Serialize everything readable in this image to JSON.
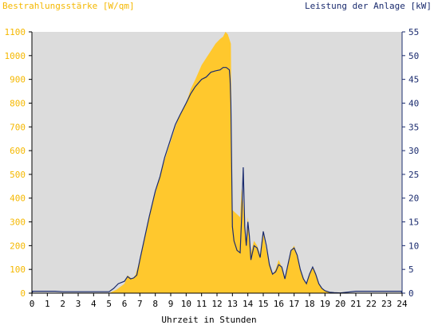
{
  "chart_data": {
    "type": "area",
    "left_axis_title": "Bestrahlungsstärke [W/qm]",
    "right_axis_title": "Leistung der Anlage [kW]",
    "xlabel": "Uhrzeit in Stunden",
    "xlim": [
      0,
      24
    ],
    "ylim_left": [
      0,
      1100
    ],
    "ylim_right": [
      0,
      55
    ],
    "x_ticks": [
      "0",
      "1",
      "2",
      "3",
      "4",
      "5",
      "6",
      "7",
      "8",
      "9",
      "10",
      "11",
      "12",
      "13",
      "14",
      "15",
      "16",
      "17",
      "18",
      "19",
      "20",
      "21",
      "22",
      "23",
      "24"
    ],
    "y_left_ticks": [
      "0",
      "100",
      "200",
      "300",
      "400",
      "500",
      "600",
      "700",
      "800",
      "900",
      "1000",
      "1100"
    ],
    "y_right_ticks": [
      "0",
      "5",
      "10",
      "15",
      "20",
      "25",
      "30",
      "35",
      "40",
      "45",
      "50",
      "55"
    ],
    "grid": false,
    "colors": {
      "plot_background": "#dcdcdc",
      "irradiance_fill": "#ffc82d",
      "power_line": "#1a2b6e",
      "left_axis_text": "#f5b800",
      "right_axis_text": "#1a2b6e"
    },
    "series": [
      {
        "axis": "left",
        "style": "area",
        "x": [
          0,
          5.0,
          5.5,
          6.0,
          6.2,
          6.5,
          6.7,
          7.0,
          7.3,
          7.6,
          8.0,
          8.3,
          8.6,
          9.0,
          9.3,
          9.6,
          10.0,
          10.3,
          10.6,
          11.0,
          11.3,
          11.6,
          11.9,
          12.2,
          12.4,
          12.55,
          12.7,
          12.9,
          12.95,
          13.0,
          13.5,
          13.6,
          13.7,
          13.8,
          13.9,
          14.0,
          14.1,
          14.2,
          14.4,
          14.6,
          14.8,
          15.0,
          15.2,
          15.4,
          15.6,
          15.8,
          16.0,
          16.2,
          16.4,
          16.6,
          16.8,
          17.0,
          17.2,
          17.4,
          17.6,
          17.8,
          18.0,
          18.2,
          18.4,
          18.6,
          18.8,
          19.0,
          19.3,
          19.6,
          20.0,
          24
        ],
        "y": [
          0,
          0,
          15,
          40,
          75,
          60,
          75,
          140,
          230,
          320,
          420,
          490,
          560,
          640,
          700,
          750,
          800,
          860,
          900,
          960,
          990,
          1020,
          1050,
          1070,
          1080,
          1100,
          1090,
          1050,
          600,
          350,
          320,
          440,
          380,
          280,
          210,
          320,
          250,
          170,
          220,
          200,
          160,
          250,
          180,
          120,
          80,
          100,
          140,
          110,
          60,
          120,
          180,
          200,
          160,
          100,
          60,
          40,
          80,
          110,
          80,
          40,
          20,
          10,
          5,
          2,
          0,
          0
        ]
      },
      {
        "axis": "right",
        "style": "line",
        "x": [
          0,
          0.05,
          0.5,
          1.0,
          1.5,
          2.0,
          2.5,
          3.0,
          3.5,
          4.0,
          4.5,
          5.0,
          5.3,
          5.6,
          6.0,
          6.2,
          6.4,
          6.6,
          6.8,
          7.0,
          7.3,
          7.6,
          8.0,
          8.3,
          8.6,
          9.0,
          9.3,
          9.6,
          10.0,
          10.3,
          10.6,
          11.0,
          11.3,
          11.6,
          11.9,
          12.2,
          12.4,
          12.6,
          12.8,
          12.85,
          12.9,
          13.0,
          13.1,
          13.3,
          13.5,
          13.6,
          13.7,
          13.8,
          13.9,
          14.0,
          14.1,
          14.2,
          14.4,
          14.6,
          14.8,
          15.0,
          15.2,
          15.4,
          15.6,
          15.8,
          16.0,
          16.2,
          16.4,
          16.6,
          16.8,
          17.0,
          17.2,
          17.4,
          17.6,
          17.8,
          18.0,
          18.2,
          18.4,
          18.6,
          18.8,
          19.0,
          19.3,
          19.6,
          20.0,
          21.0,
          22.0,
          23.0,
          23.5,
          23.95,
          24
        ],
        "y": [
          0,
          0.4,
          0.4,
          0.4,
          0.4,
          0.3,
          0.3,
          0.3,
          0.3,
          0.3,
          0.3,
          0.3,
          1.0,
          2.0,
          2.5,
          3.5,
          3.0,
          3.2,
          3.8,
          7.0,
          11.5,
          16.0,
          21.5,
          24.5,
          28.5,
          32.5,
          35.5,
          37.5,
          40.0,
          42.0,
          43.5,
          45.0,
          45.5,
          46.5,
          46.8,
          47.0,
          47.5,
          47.5,
          47.0,
          45.0,
          40.0,
          14.0,
          11.0,
          9.0,
          8.5,
          16.0,
          26.5,
          14.0,
          10.0,
          15.0,
          12.0,
          7.0,
          10.0,
          9.5,
          7.5,
          13.0,
          10.0,
          6.0,
          4.0,
          4.5,
          6.0,
          5.5,
          3.0,
          6.0,
          9.0,
          9.5,
          8.0,
          5.0,
          3.0,
          2.0,
          4.0,
          5.5,
          4.0,
          2.0,
          1.0,
          0.5,
          0.2,
          0.1,
          0.05,
          0.4,
          0.4,
          0.4,
          0.4,
          0.4,
          0
        ]
      }
    ]
  }
}
